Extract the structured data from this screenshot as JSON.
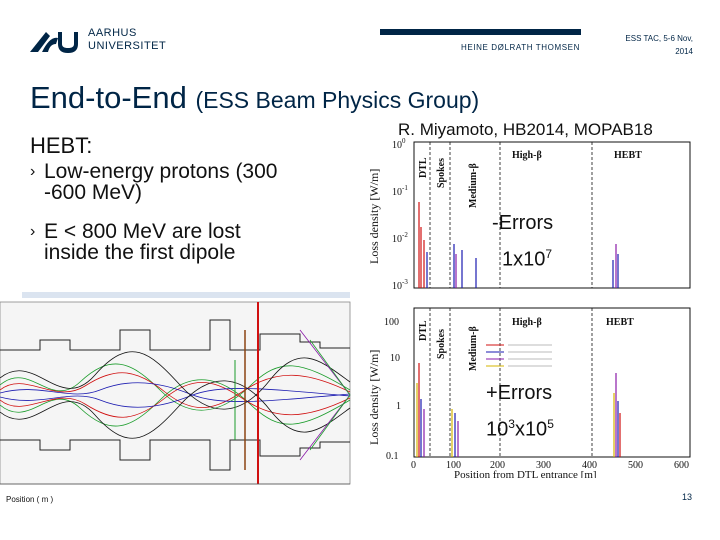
{
  "header": {
    "university_line1": "AARHUS",
    "university_line2": "UNIVERSITET",
    "presenter": "HEINE DØLRATH THOMSEN",
    "event_line1": "ESS TAC, 5-6 Nov,",
    "event_line2": "2014"
  },
  "slide": {
    "title_main": "End-to-End",
    "title_sub": "(ESS Beam Physics Group)",
    "citation": "R. Miyamoto, HB2014, MOPAB18",
    "section": "HEBT:",
    "bullets": [
      {
        "line1": "Low-energy protons (300",
        "line2": "-600 MeV)"
      },
      {
        "line1": "E < 800 MeV are lost",
        "line2": "inside the first dipole"
      }
    ],
    "page_number": "13"
  },
  "annotations": {
    "errors_minus": "-Errors",
    "count1_base": "1x10",
    "count1_exp": "7",
    "errors_plus": "+Errors",
    "count2_a": "10",
    "count2_a_exp": "3",
    "count2_b": "x10",
    "count2_b_exp": "5"
  },
  "plot_top": {
    "ylabel": "Loss density [W/m]",
    "yticks": [
      "10",
      "10",
      "10",
      "10"
    ],
    "ytick_exps": [
      "0",
      "-1",
      "-2",
      "-3"
    ],
    "regions": [
      "DTL",
      "Spokes",
      "Medium-β",
      "High-β",
      "HEBT"
    ]
  },
  "plot_bottom": {
    "ylabel": "Loss density [W/m]",
    "yticks": [
      "100",
      "10",
      "1",
      "0.1"
    ],
    "xticks": [
      "0",
      "100",
      "200",
      "300",
      "400",
      "500",
      "600"
    ],
    "xlabel": "Position from DTL entrance [m]",
    "regions": [
      "DTL",
      "Spokes",
      "Medium-β",
      "High-β",
      "HEBT"
    ]
  },
  "simulation": {
    "xlabel": "Position ( m )"
  },
  "colors": {
    "brand": "#002546",
    "loss_red": "#d01010",
    "loss_blue": "#1a1ab0",
    "loss_purple": "#8a1aa8",
    "loss_yellow": "#d4b400"
  }
}
